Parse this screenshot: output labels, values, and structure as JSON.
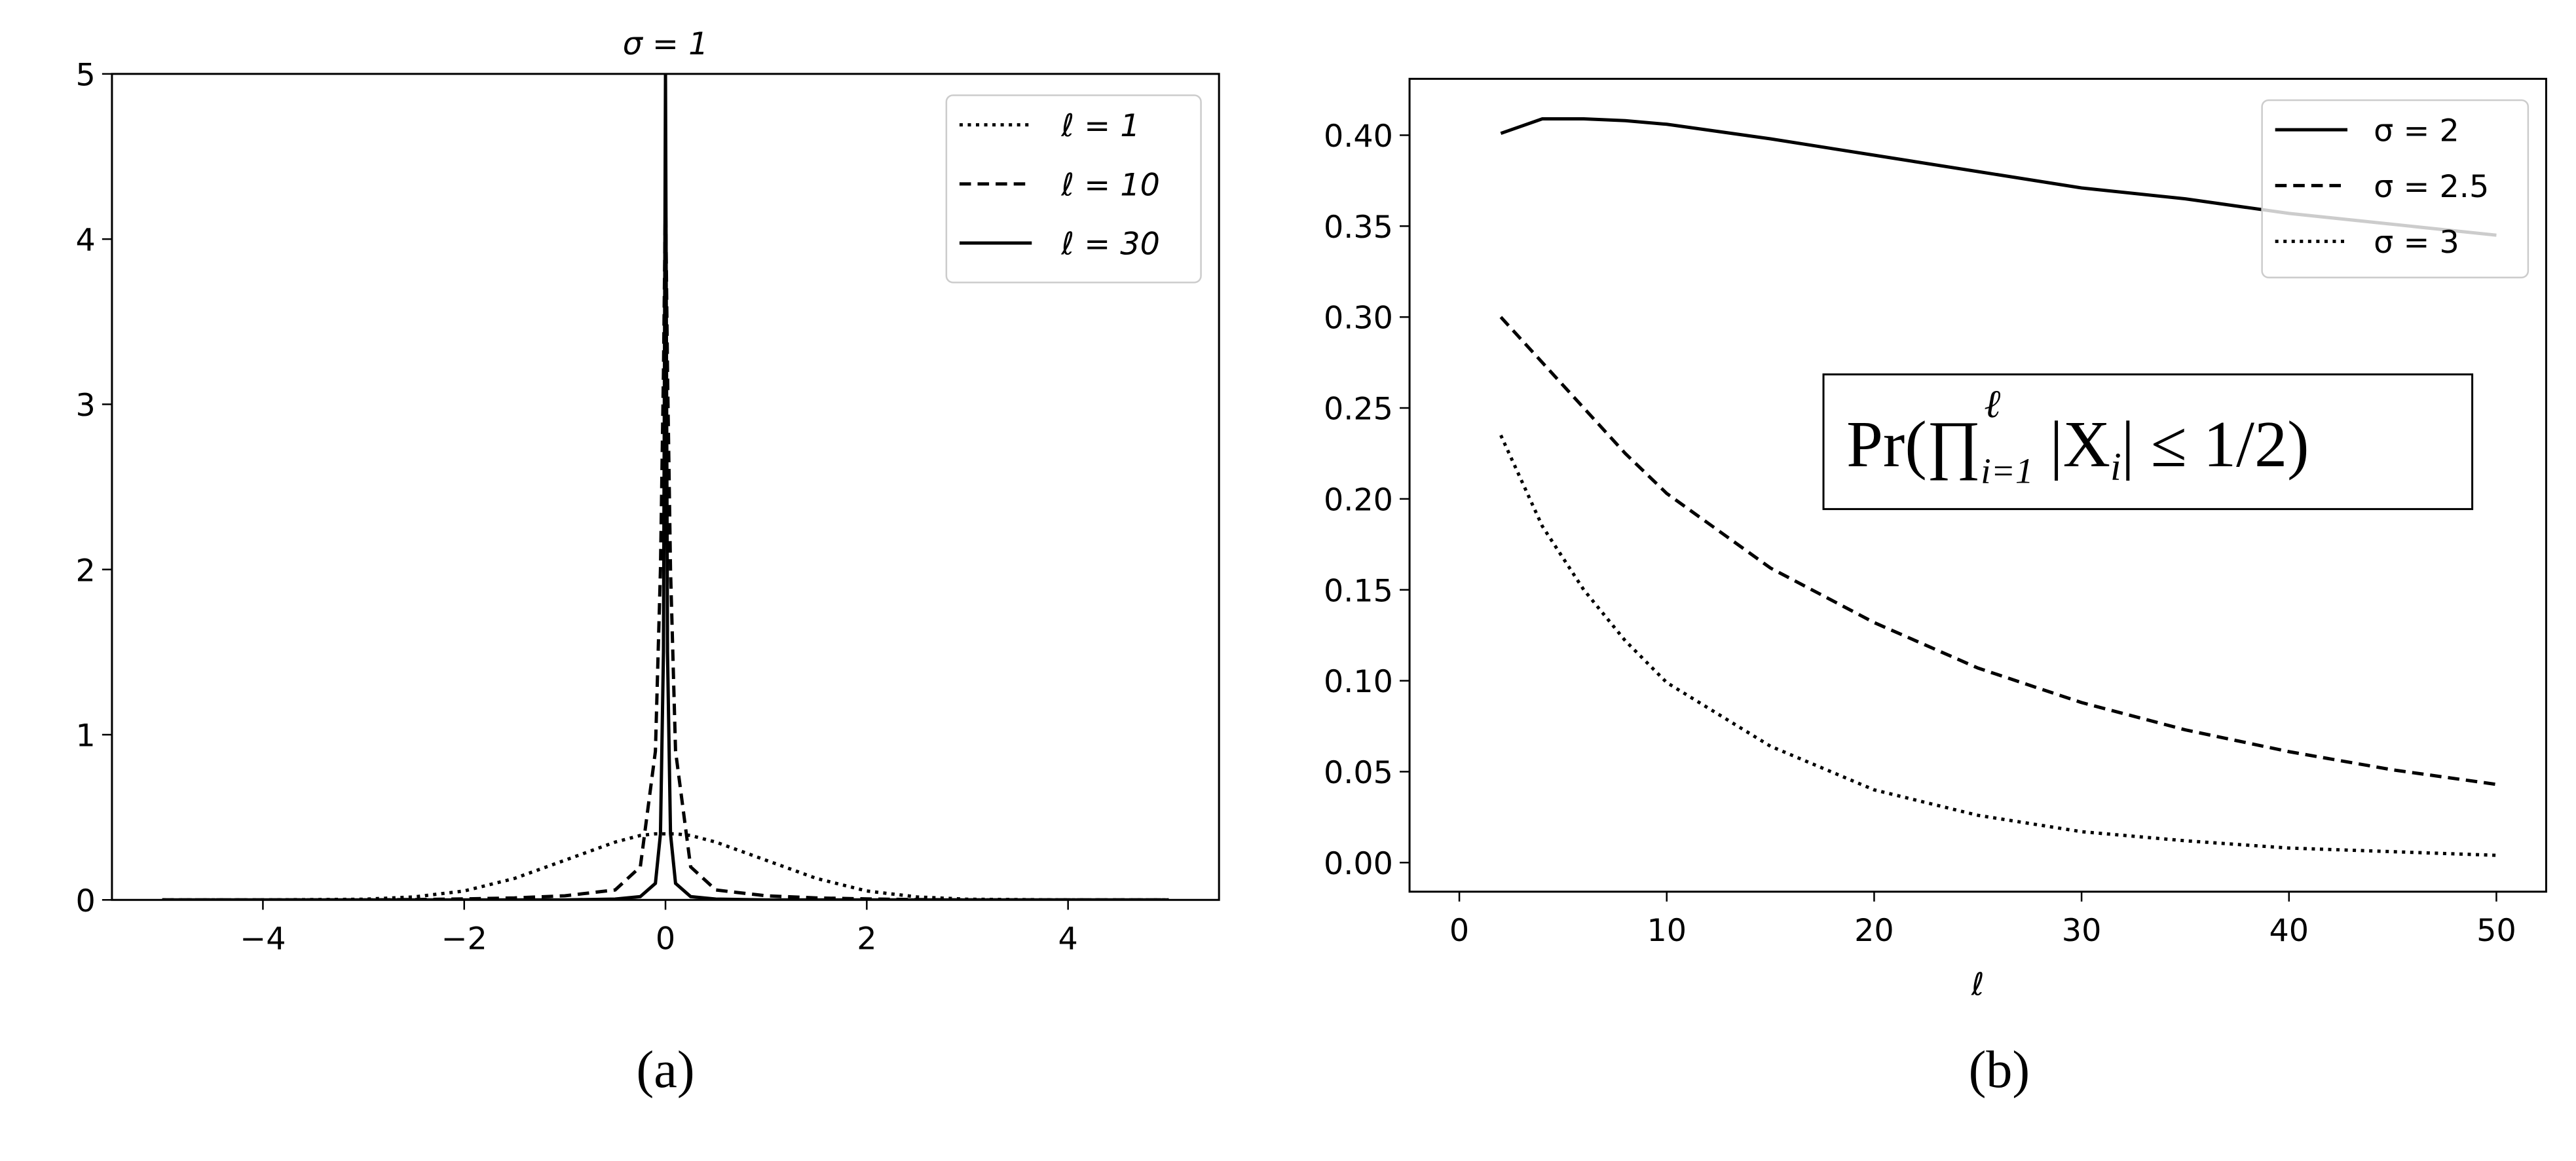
{
  "chart_data": [
    {
      "type": "line",
      "title": "σ = 1",
      "caption": "(a)",
      "x": [
        -5,
        -4,
        -3,
        -2.5,
        -2,
        -1.5,
        -1,
        -0.5,
        -0.25,
        -0.1,
        -0.05,
        -0.02,
        0,
        0.02,
        0.05,
        0.1,
        0.25,
        0.5,
        1,
        1.5,
        2,
        2.5,
        3,
        4,
        5
      ],
      "series": [
        {
          "name": "ℓ = 1",
          "color": "#000000",
          "linestyle": "dotted",
          "values": [
            0,
            0.0001,
            0.004,
            0.018,
            0.054,
            0.13,
            0.24,
            0.35,
            0.39,
            0.4,
            0.4,
            0.4,
            0.4,
            0.4,
            0.4,
            0.4,
            0.39,
            0.35,
            0.24,
            0.13,
            0.054,
            0.018,
            0.004,
            0.0001,
            0
          ]
        },
        {
          "name": "ℓ = 10",
          "color": "#000000",
          "linestyle": "dashed",
          "values": [
            0,
            0,
            0,
            0.002,
            0.006,
            0.012,
            0.025,
            0.06,
            0.2,
            0.9,
            2,
            3.2,
            4.3,
            3.2,
            2,
            0.9,
            0.2,
            0.06,
            0.025,
            0.012,
            0.006,
            0.002,
            0,
            0,
            0
          ]
        },
        {
          "name": "ℓ = 30",
          "color": "#000000",
          "linestyle": "solid",
          "values": [
            0,
            0,
            0,
            0,
            0,
            0,
            0,
            0.005,
            0.02,
            0.1,
            0.4,
            1.5,
            5,
            1.5,
            0.4,
            0.1,
            0.02,
            0.005,
            0,
            0,
            0,
            0,
            0,
            0,
            0
          ]
        }
      ],
      "xlim": [
        -5.5,
        5.5
      ],
      "ylim": [
        0,
        5
      ],
      "xticks": [
        {
          "value": -4,
          "label": "−4"
        },
        {
          "value": -2,
          "label": "−2"
        },
        0,
        2,
        4
      ],
      "yticks": [
        0,
        1,
        2,
        3,
        4,
        5
      ],
      "legend": "upper right"
    },
    {
      "type": "line",
      "caption": "(b)",
      "xlabel": "ℓ",
      "x": [
        2,
        4,
        6,
        8,
        10,
        15,
        20,
        25,
        30,
        35,
        40,
        45,
        50
      ],
      "series": [
        {
          "name": "σ = 2",
          "color": "#000000",
          "linestyle": "solid",
          "values": [
            0.401,
            0.409,
            0.409,
            0.408,
            0.406,
            0.398,
            0.389,
            0.38,
            0.371,
            0.365,
            0.357,
            0.351,
            0.345
          ]
        },
        {
          "name": "σ = 2.5",
          "color": "#000000",
          "linestyle": "dashed",
          "values": [
            0.3,
            0.275,
            0.25,
            0.225,
            0.203,
            0.162,
            0.132,
            0.107,
            0.088,
            0.073,
            0.061,
            0.051,
            0.043
          ]
        },
        {
          "name": "σ = 3",
          "color": "#000000",
          "linestyle": "dotted",
          "values": [
            0.235,
            0.185,
            0.15,
            0.122,
            0.099,
            0.064,
            0.04,
            0.026,
            0.017,
            0.012,
            0.008,
            0.006,
            0.004
          ]
        }
      ],
      "xlim": [
        -2.4,
        52.4
      ],
      "ylim": [
        -0.016,
        0.431
      ],
      "xticks": [
        0,
        10,
        20,
        30,
        40,
        50
      ],
      "yticks": [
        {
          "value": 0,
          "label": "0.00"
        },
        {
          "value": 0.05,
          "label": "0.05"
        },
        {
          "value": 0.1,
          "label": "0.10"
        },
        {
          "value": 0.15,
          "label": "0.15"
        },
        {
          "value": 0.2,
          "label": "0.20"
        },
        {
          "value": 0.25,
          "label": "0.25"
        },
        {
          "value": 0.3,
          "label": "0.30"
        },
        {
          "value": 0.35,
          "label": "0.35"
        },
        {
          "value": 0.4,
          "label": "0.40"
        }
      ],
      "legend": "upper right",
      "annotation": {
        "parts": [
          "Pr(∏",
          "ℓ",
          "i=1",
          " |X",
          "i",
          "| ≤ 1/2)"
        ]
      }
    }
  ]
}
